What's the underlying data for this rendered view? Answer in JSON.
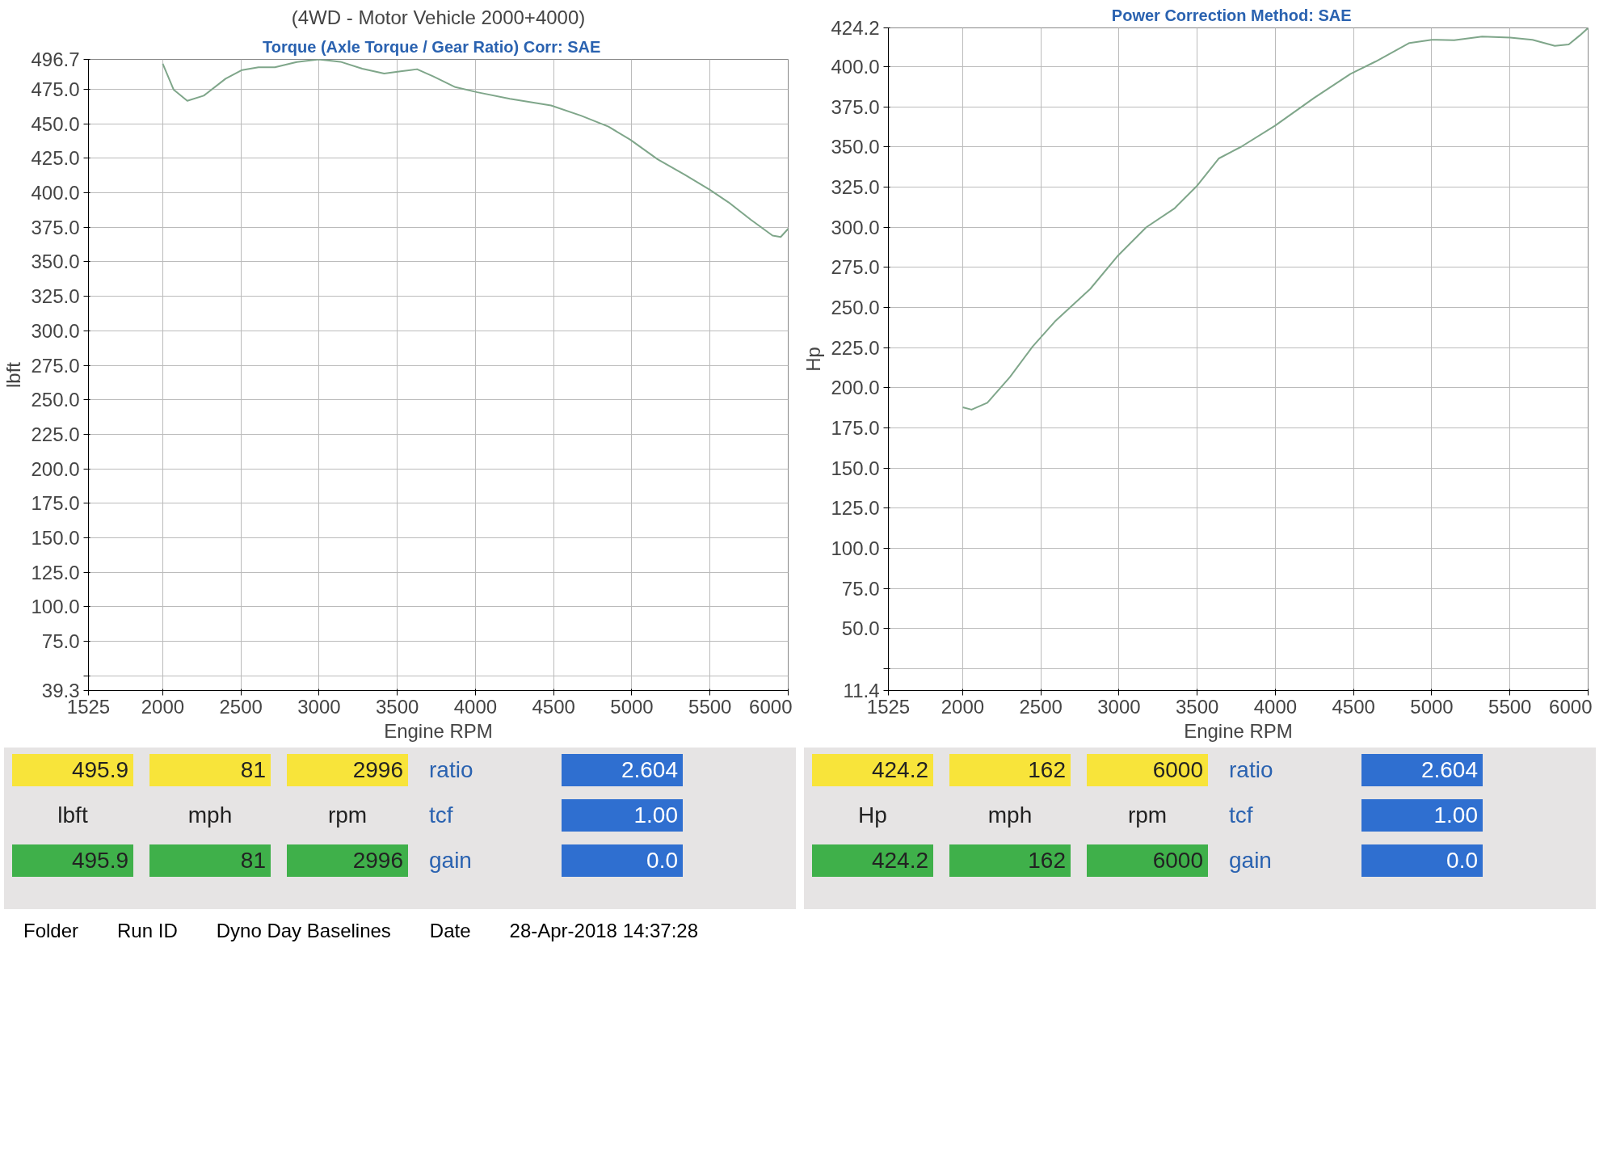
{
  "chart_data": [
    {
      "type": "line",
      "title": "(4WD - Motor Vehicle 2000+4000)",
      "subtitle": "Torque (Axle Torque / Gear Ratio)    Corr: SAE",
      "xlabel": "Engine RPM",
      "ylabel": "lbft",
      "xlim": [
        1525,
        6000
      ],
      "xticks": [
        1525,
        2000,
        2500,
        3000,
        3500,
        4000,
        4500,
        5000,
        5500,
        6000
      ],
      "ylim": [
        39.3,
        496.7
      ],
      "yticks": [
        39.3,
        {
          "value": 50,
          "label": null
        },
        {
          "value": 75,
          "label": "75.0"
        },
        {
          "value": 100,
          "label": "100.0"
        },
        {
          "value": 125,
          "label": "125.0"
        },
        {
          "value": 150,
          "label": "150.0"
        },
        {
          "value": 175,
          "label": "175.0"
        },
        {
          "value": 200,
          "label": "200.0"
        },
        {
          "value": 225,
          "label": "225.0"
        },
        {
          "value": 250,
          "label": "250.0"
        },
        {
          "value": 275,
          "label": "275.0"
        },
        {
          "value": 300,
          "label": "300.0"
        },
        {
          "value": 325,
          "label": "325.0"
        },
        {
          "value": 350,
          "label": "350.0"
        },
        {
          "value": 375,
          "label": "375.0"
        },
        {
          "value": 400,
          "label": "400.0"
        },
        {
          "value": 425,
          "label": "425.0"
        },
        {
          "value": 450,
          "label": "450.0"
        },
        {
          "value": 475,
          "label": "475.0"
        },
        496.7
      ],
      "grid": true,
      "marker": "none",
      "line_style": "solid",
      "x": [
        2000,
        2070,
        2157,
        2262,
        2402,
        2507,
        2612,
        2717,
        2857,
        2997,
        3136,
        3276,
        3416,
        3521,
        3626,
        3731,
        3871,
        4011,
        4220,
        4483,
        4675,
        4850,
        4990,
        5165,
        5340,
        5497,
        5620,
        5760,
        5900,
        5952,
        6000
      ],
      "series": [
        {
          "color": "#7fa68a",
          "values": [
            493.6,
            474.7,
            466.7,
            470.4,
            482.7,
            489,
            491,
            491,
            494.8,
            496.7,
            495,
            490,
            486.5,
            488,
            489.6,
            484.3,
            476.6,
            472.9,
            468.2,
            463.3,
            455.9,
            448,
            438.5,
            424.3,
            413,
            402.3,
            393,
            380.6,
            369,
            368,
            374
          ]
        }
      ],
      "annotations": [
        "495.9",
        "81",
        "2996",
        "ratio",
        "2.604",
        "lbft",
        "mph",
        "rpm",
        "tcf",
        "1.00",
        "495.9",
        "81",
        "2996",
        "gain",
        "0.0"
      ]
    },
    {
      "type": "line",
      "subtitle": "Power    Correction Method: SAE",
      "xlabel": "Engine RPM",
      "ylabel": "Hp",
      "xlim": [
        1525,
        6000
      ],
      "xticks": [
        1525,
        2000,
        2500,
        3000,
        3500,
        4000,
        4500,
        5000,
        5500,
        6000
      ],
      "ylim": [
        11.4,
        424.2
      ],
      "yticks": [
        11.4,
        {
          "value": 25,
          "label": null
        },
        {
          "value": 50,
          "label": "50.0"
        },
        {
          "value": 75,
          "label": "75.0"
        },
        {
          "value": 100,
          "label": "100.0"
        },
        {
          "value": 125,
          "label": "125.0"
        },
        {
          "value": 150,
          "label": "150.0"
        },
        {
          "value": 175,
          "label": "175.0"
        },
        {
          "value": 200,
          "label": "200.0"
        },
        {
          "value": 225,
          "label": "225.0"
        },
        {
          "value": 250,
          "label": "250.0"
        },
        {
          "value": 275,
          "label": "275.0"
        },
        {
          "value": 300,
          "label": "300.0"
        },
        {
          "value": 325,
          "label": "325.0"
        },
        {
          "value": 350,
          "label": "350.0"
        },
        {
          "value": 375,
          "label": "375.0"
        },
        {
          "value": 400,
          "label": "400.0"
        },
        424.2
      ],
      "grid": true,
      "marker": "none",
      "line_style": "solid",
      "x": [
        2000,
        2057,
        2158,
        2302,
        2446,
        2590,
        2816,
        2995,
        3174,
        3353,
        3496,
        3639,
        3782,
        3997,
        4248,
        4481,
        4642,
        4857,
        5000,
        5143,
        5322,
        5501,
        5644,
        5787,
        5876,
        5948,
        6000
      ],
      "series": [
        {
          "color": "#7fa68a",
          "values": [
            187.8,
            186.4,
            190.7,
            206.7,
            225.5,
            241.3,
            261.6,
            282.5,
            300,
            311.6,
            325.5,
            342.9,
            350.2,
            363.2,
            380.6,
            395.6,
            403.3,
            414.8,
            416.8,
            416.5,
            418.8,
            418.2,
            416.8,
            413,
            413.9,
            419.6,
            424.2
          ]
        }
      ],
      "annotations": [
        "424.2",
        "162",
        "6000",
        "ratio",
        "2.604",
        "Hp",
        "mph",
        "rpm",
        "tcf",
        "1.00",
        "424.2",
        "162",
        "6000",
        "gain",
        "0.0"
      ]
    },
    {
      "type": "other",
      "annotations": [
        "Folder",
        "Run ID",
        "Dyno Day Baselines",
        "Date",
        "28-Apr-2018  14:37:28"
      ]
    }
  ]
}
